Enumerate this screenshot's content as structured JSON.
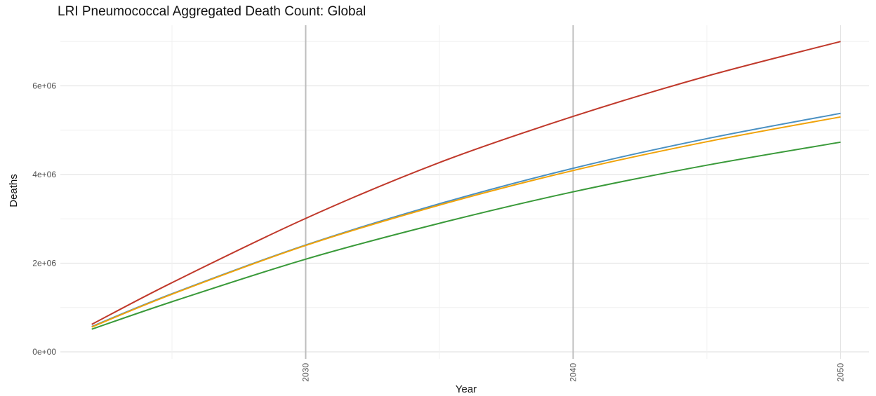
{
  "chart_data": {
    "type": "line",
    "title": "LRI Pneumococcal Aggregated Death Count: Global",
    "xlabel": "Year",
    "ylabel": "Deaths",
    "xlim": [
      2022,
      2050
    ],
    "ylim": [
      0,
      7000000
    ],
    "x_ticks": [
      2030,
      2040,
      2050
    ],
    "y_ticks": [
      0,
      2000000,
      4000000,
      6000000
    ],
    "x_tick_labels": [
      "2030",
      "2040",
      "2050"
    ],
    "y_tick_labels": [
      "0e+00",
      "2e+06",
      "4e+06",
      "6e+06"
    ],
    "vertical_reference_lines": [
      2030,
      2040
    ],
    "grid": true,
    "legend": "none",
    "x": [
      2022,
      2025,
      2030,
      2035,
      2040,
      2045,
      2050
    ],
    "series": [
      {
        "color": "#c0392b",
        "values": [
          620000,
          1560000,
          3010000,
          4270000,
          5310000,
          6220000,
          7000000
        ]
      },
      {
        "color": "#4a90c2",
        "values": [
          570000,
          1310000,
          2410000,
          3340000,
          4140000,
          4810000,
          5380000
        ]
      },
      {
        "color": "#f0a30a",
        "values": [
          560000,
          1300000,
          2400000,
          3310000,
          4090000,
          4740000,
          5300000
        ]
      },
      {
        "color": "#3a9a3a",
        "values": [
          510000,
          1130000,
          2090000,
          2900000,
          3610000,
          4210000,
          4730000
        ]
      }
    ]
  }
}
